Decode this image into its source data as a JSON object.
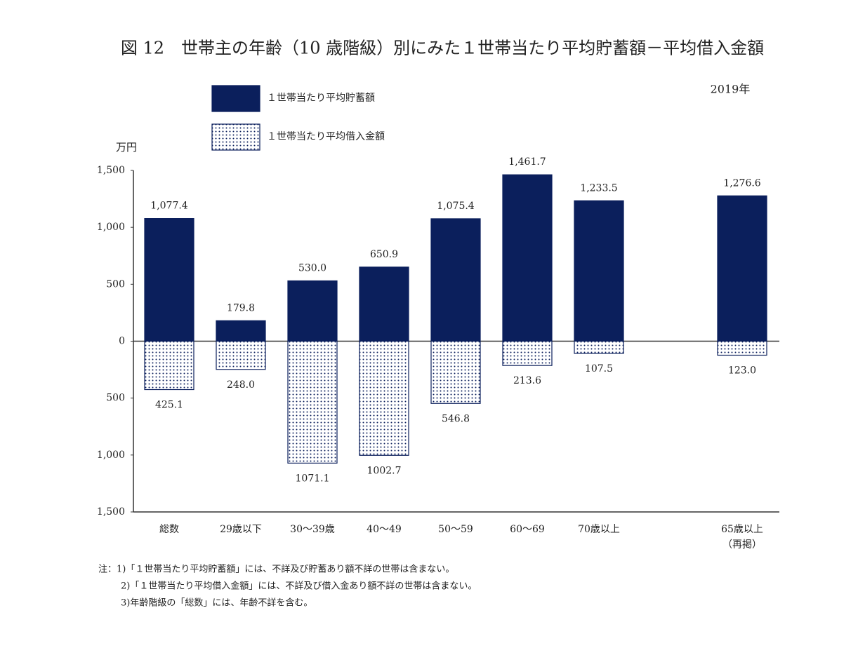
{
  "chart_data": {
    "type": "bar",
    "title": "図 12　世帯主の年齢（10 歳階級）別にみた１世帯当たり平均貯蓄額－平均借入金額",
    "subtitle": "2019年",
    "y_label": "万円",
    "categories": [
      "総数",
      "29歳以下",
      "30～39歳",
      "40～49",
      "50～59",
      "60～69",
      "70歳以上",
      null,
      "65歳以上\n（再掲）"
    ],
    "series": [
      {
        "name": "１世帯当たり平均貯蓄額",
        "color": "#0b1f5c",
        "values": [
          1077.4,
          179.8,
          530.0,
          650.9,
          1075.4,
          1461.7,
          1233.5,
          null,
          1276.6
        ],
        "value_labels": [
          "1,077.4",
          "179.8",
          "530.0",
          "650.9",
          "1,075.4",
          "1,461.7",
          "1,233.5",
          null,
          "1,276.6"
        ]
      },
      {
        "name": "１世帯当たり平均借入金額",
        "color": "#0b1f5c",
        "pattern": "dots",
        "values": [
          -425.1,
          -248.0,
          -1071.1,
          -1002.7,
          -546.8,
          -213.6,
          -107.5,
          null,
          -123.0
        ],
        "value_labels": [
          "425.1",
          "248.0",
          "1071.1",
          "1002.7",
          "546.8",
          "213.6",
          "107.5",
          null,
          "123.0"
        ]
      }
    ],
    "ylim": [
      -1500,
      1500
    ],
    "yticks": [
      {
        "value": 1500,
        "label": "1,500"
      },
      {
        "value": 1000,
        "label": "1,000"
      },
      500,
      0,
      {
        "value": -500,
        "label": "500"
      },
      {
        "value": -1000,
        "label": "1,000"
      },
      {
        "value": -1500,
        "label": "1,500"
      }
    ],
    "notes": [
      "注：1)「１世帯当たり平均貯蓄額」には、不詳及び貯蓄あり額不詳の世帯は含まない。",
      "2)「１世帯当たり平均借入金額」には、不詳及び借入金あり額不詳の世帯は含まない。",
      "3)年齢階級の「総数」には、年齢不詳を含む。"
    ]
  }
}
